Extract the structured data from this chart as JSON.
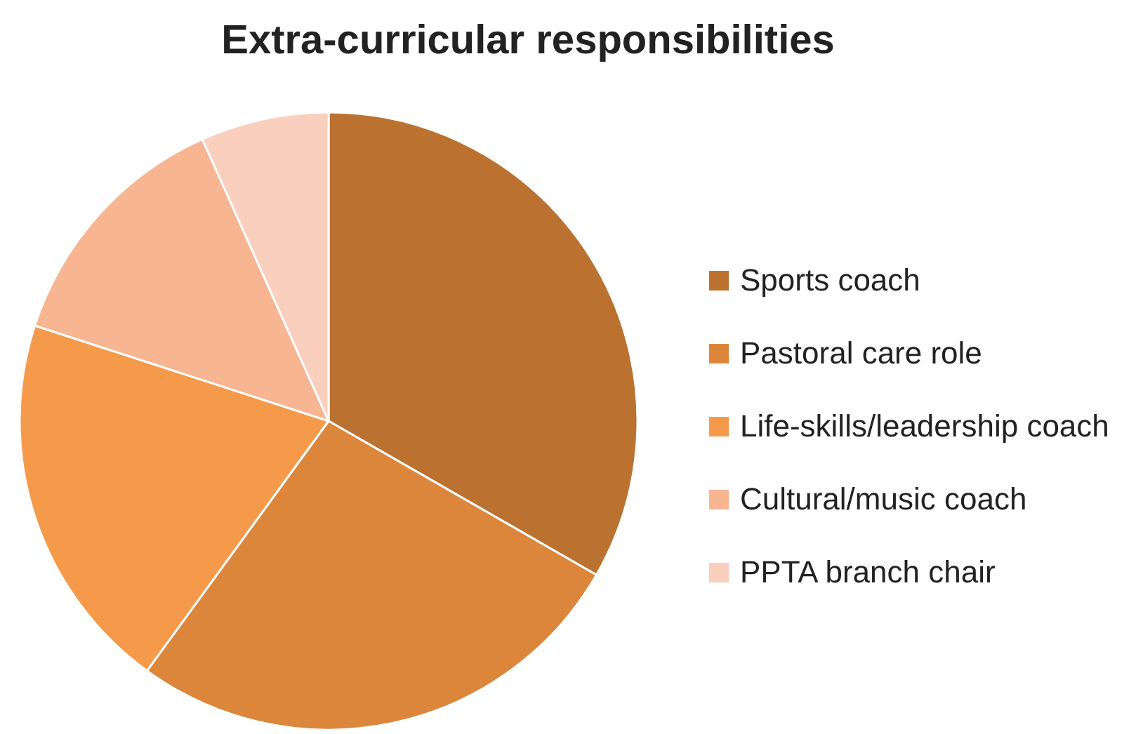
{
  "chart_data": {
    "type": "pie",
    "title": "Extra-curricular responsibilities",
    "categories": [
      "Sports coach",
      "Pastoral care role",
      "Life-skills/leadership coach",
      "Cultural/music coach",
      "PPTA branch chair"
    ],
    "values": [
      33.3,
      26.7,
      20,
      13.3,
      6.7
    ],
    "colors": [
      "#bb7231",
      "#dc863b",
      "#f59a4a",
      "#f8b591",
      "#fbcfbd"
    ],
    "legend": "right"
  }
}
